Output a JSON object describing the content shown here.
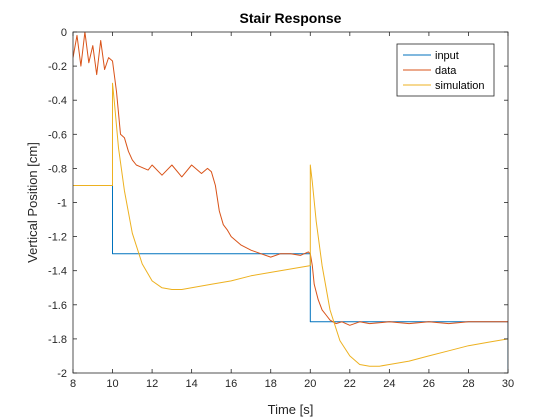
{
  "chart_data": {
    "type": "line",
    "title": "Stair Response",
    "xlabel": "Time [s]",
    "ylabel": "Vertical Position [cm]",
    "xlim": [
      8,
      30
    ],
    "ylim": [
      -2,
      0
    ],
    "xticks": [
      8,
      10,
      12,
      14,
      16,
      18,
      20,
      22,
      24,
      26,
      28,
      30
    ],
    "yticks": [
      0,
      -0.2,
      -0.4,
      -0.6,
      -0.8,
      -1,
      -1.2,
      -1.4,
      -1.6,
      -1.8,
      -2
    ],
    "grid": false,
    "legend_position": "top-right",
    "series": [
      {
        "name": "input",
        "color": "#0072BD",
        "x": [
          10,
          10,
          20,
          20,
          30,
          30
        ],
        "y": [
          -0.9,
          -1.3,
          -1.3,
          -1.7,
          -1.7,
          -2.0
        ]
      },
      {
        "name": "data",
        "color": "#D95319",
        "x": [
          8.0,
          8.2,
          8.4,
          8.6,
          8.8,
          9.0,
          9.2,
          9.4,
          9.6,
          9.8,
          10.0,
          10.2,
          10.4,
          10.6,
          10.8,
          11.0,
          11.2,
          11.4,
          11.6,
          11.8,
          12.0,
          12.5,
          13.0,
          13.5,
          14.0,
          14.5,
          14.8,
          15.0,
          15.2,
          15.4,
          15.6,
          15.8,
          16.0,
          16.5,
          17.0,
          17.5,
          18.0,
          18.5,
          19.0,
          19.5,
          19.9,
          20.0,
          20.1,
          20.2,
          20.4,
          20.6,
          20.8,
          21.0,
          21.3,
          21.6,
          22.0,
          22.5,
          23.0,
          24.0,
          25.0,
          26.0,
          27.0,
          28.0,
          29.0,
          30.0
        ],
        "y": [
          -0.15,
          -0.02,
          -0.2,
          0.0,
          -0.18,
          -0.08,
          -0.25,
          -0.05,
          -0.22,
          -0.15,
          -0.17,
          -0.35,
          -0.6,
          -0.62,
          -0.7,
          -0.75,
          -0.78,
          -0.79,
          -0.8,
          -0.81,
          -0.78,
          -0.84,
          -0.78,
          -0.85,
          -0.78,
          -0.83,
          -0.8,
          -0.82,
          -0.9,
          -1.05,
          -1.13,
          -1.16,
          -1.2,
          -1.25,
          -1.28,
          -1.3,
          -1.32,
          -1.3,
          -1.3,
          -1.31,
          -1.29,
          -1.3,
          -1.37,
          -1.48,
          -1.57,
          -1.63,
          -1.66,
          -1.69,
          -1.71,
          -1.7,
          -1.72,
          -1.7,
          -1.71,
          -1.7,
          -1.71,
          -1.7,
          -1.71,
          -1.7,
          -1.7,
          -1.7
        ]
      },
      {
        "name": "simulation",
        "color": "#EDB120",
        "x": [
          8.0,
          9.0,
          10.0,
          10.0,
          10.1,
          10.3,
          10.6,
          11.0,
          11.5,
          12.0,
          12.5,
          13.0,
          13.5,
          14.0,
          15.0,
          16.0,
          17.0,
          18.0,
          19.0,
          20.0,
          20.0,
          20.1,
          20.3,
          20.6,
          21.0,
          21.5,
          22.0,
          22.5,
          23.0,
          23.5,
          24.0,
          25.0,
          26.0,
          27.0,
          28.0,
          29.0,
          30.0
        ],
        "y": [
          -0.9,
          -0.9,
          -0.9,
          -0.3,
          -0.42,
          -0.68,
          -0.93,
          -1.18,
          -1.36,
          -1.46,
          -1.5,
          -1.51,
          -1.51,
          -1.5,
          -1.48,
          -1.46,
          -1.43,
          -1.41,
          -1.39,
          -1.37,
          -0.78,
          -0.88,
          -1.11,
          -1.37,
          -1.63,
          -1.81,
          -1.9,
          -1.95,
          -1.96,
          -1.96,
          -1.95,
          -1.93,
          -1.9,
          -1.87,
          -1.84,
          -1.82,
          -1.8
        ]
      }
    ]
  }
}
